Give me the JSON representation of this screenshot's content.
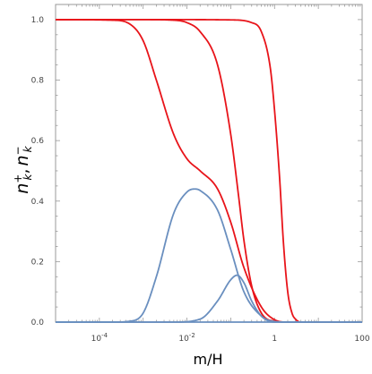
{
  "chart_data": {
    "type": "line",
    "xlabel": "m/H",
    "ylabel": "n⁺_k, n⁻_k",
    "ylabel_parts": {
      "n1": "n",
      "sup1": "+",
      "sub1": "k",
      "sep": ",",
      "n2": "n",
      "sup2": "−",
      "sub2": "k"
    },
    "xscale": "log",
    "xlim": [
      1e-05,
      100
    ],
    "ylim": [
      0,
      1.05
    ],
    "grid": false,
    "x_ticks": [
      {
        "value": 0.0001,
        "base": "10",
        "exp": "-4"
      },
      {
        "value": 0.01,
        "base": "10",
        "exp": "-2"
      },
      {
        "value": 1,
        "label": "1"
      },
      {
        "value": 100,
        "label": "100"
      }
    ],
    "y_ticks": [
      {
        "value": 0.0,
        "label": "0.0"
      },
      {
        "value": 0.2,
        "label": "0.2"
      },
      {
        "value": 0.4,
        "label": "0.4"
      },
      {
        "value": 0.6,
        "label": "0.6"
      },
      {
        "value": 0.8,
        "label": "0.8"
      },
      {
        "value": 1.0,
        "label": "1.0"
      }
    ],
    "colors": {
      "red": "#e8141a",
      "blue": "#6a8fbf",
      "frame": "#999999"
    },
    "series": [
      {
        "color": "red",
        "x": [
          1e-05,
          0.0002,
          0.0005,
          0.001,
          0.002,
          0.005,
          0.01,
          0.02,
          0.05,
          0.1,
          0.2,
          0.5,
          1,
          2,
          10,
          100
        ],
        "y": [
          1.0,
          0.998,
          0.985,
          0.93,
          0.8,
          0.62,
          0.54,
          0.5,
          0.44,
          0.33,
          0.18,
          0.05,
          0.008,
          0.0,
          0.0,
          0.0
        ]
      },
      {
        "color": "red",
        "x": [
          1e-05,
          0.001,
          0.005,
          0.01,
          0.02,
          0.05,
          0.1,
          0.15,
          0.2,
          0.3,
          0.5,
          1,
          2,
          10,
          100
        ],
        "y": [
          1.0,
          1.0,
          0.998,
          0.99,
          0.96,
          0.85,
          0.62,
          0.42,
          0.27,
          0.12,
          0.03,
          0.003,
          0.0,
          0.0,
          0.0
        ]
      },
      {
        "color": "red",
        "x": [
          1e-05,
          0.01,
          0.1,
          0.3,
          0.5,
          0.8,
          1.0,
          1.3,
          1.6,
          2.0,
          2.5,
          3.0,
          4.0,
          10,
          100
        ],
        "y": [
          1.0,
          1.0,
          0.999,
          0.99,
          0.96,
          0.84,
          0.7,
          0.48,
          0.26,
          0.1,
          0.03,
          0.01,
          0.0,
          0.0,
          0.0
        ]
      },
      {
        "color": "blue",
        "x": [
          1e-05,
          0.0002,
          0.0005,
          0.001,
          0.002,
          0.005,
          0.01,
          0.015,
          0.02,
          0.05,
          0.1,
          0.2,
          0.5,
          1,
          2,
          10,
          100
        ],
        "y": [
          0.0,
          0.0,
          0.003,
          0.03,
          0.15,
          0.36,
          0.43,
          0.44,
          0.435,
          0.37,
          0.24,
          0.1,
          0.02,
          0.002,
          0.0,
          0.0,
          0.0
        ]
      },
      {
        "color": "blue",
        "x": [
          1e-05,
          0.005,
          0.02,
          0.05,
          0.1,
          0.14,
          0.2,
          0.3,
          0.5,
          1,
          10,
          100
        ],
        "y": [
          0.0,
          0.0,
          0.01,
          0.07,
          0.14,
          0.155,
          0.13,
          0.07,
          0.02,
          0.0,
          0.0,
          0.0
        ]
      },
      {
        "color": "blue",
        "x": [
          1e-05,
          1,
          100
        ],
        "y": [
          0.0,
          0.0,
          0.0
        ]
      }
    ]
  }
}
